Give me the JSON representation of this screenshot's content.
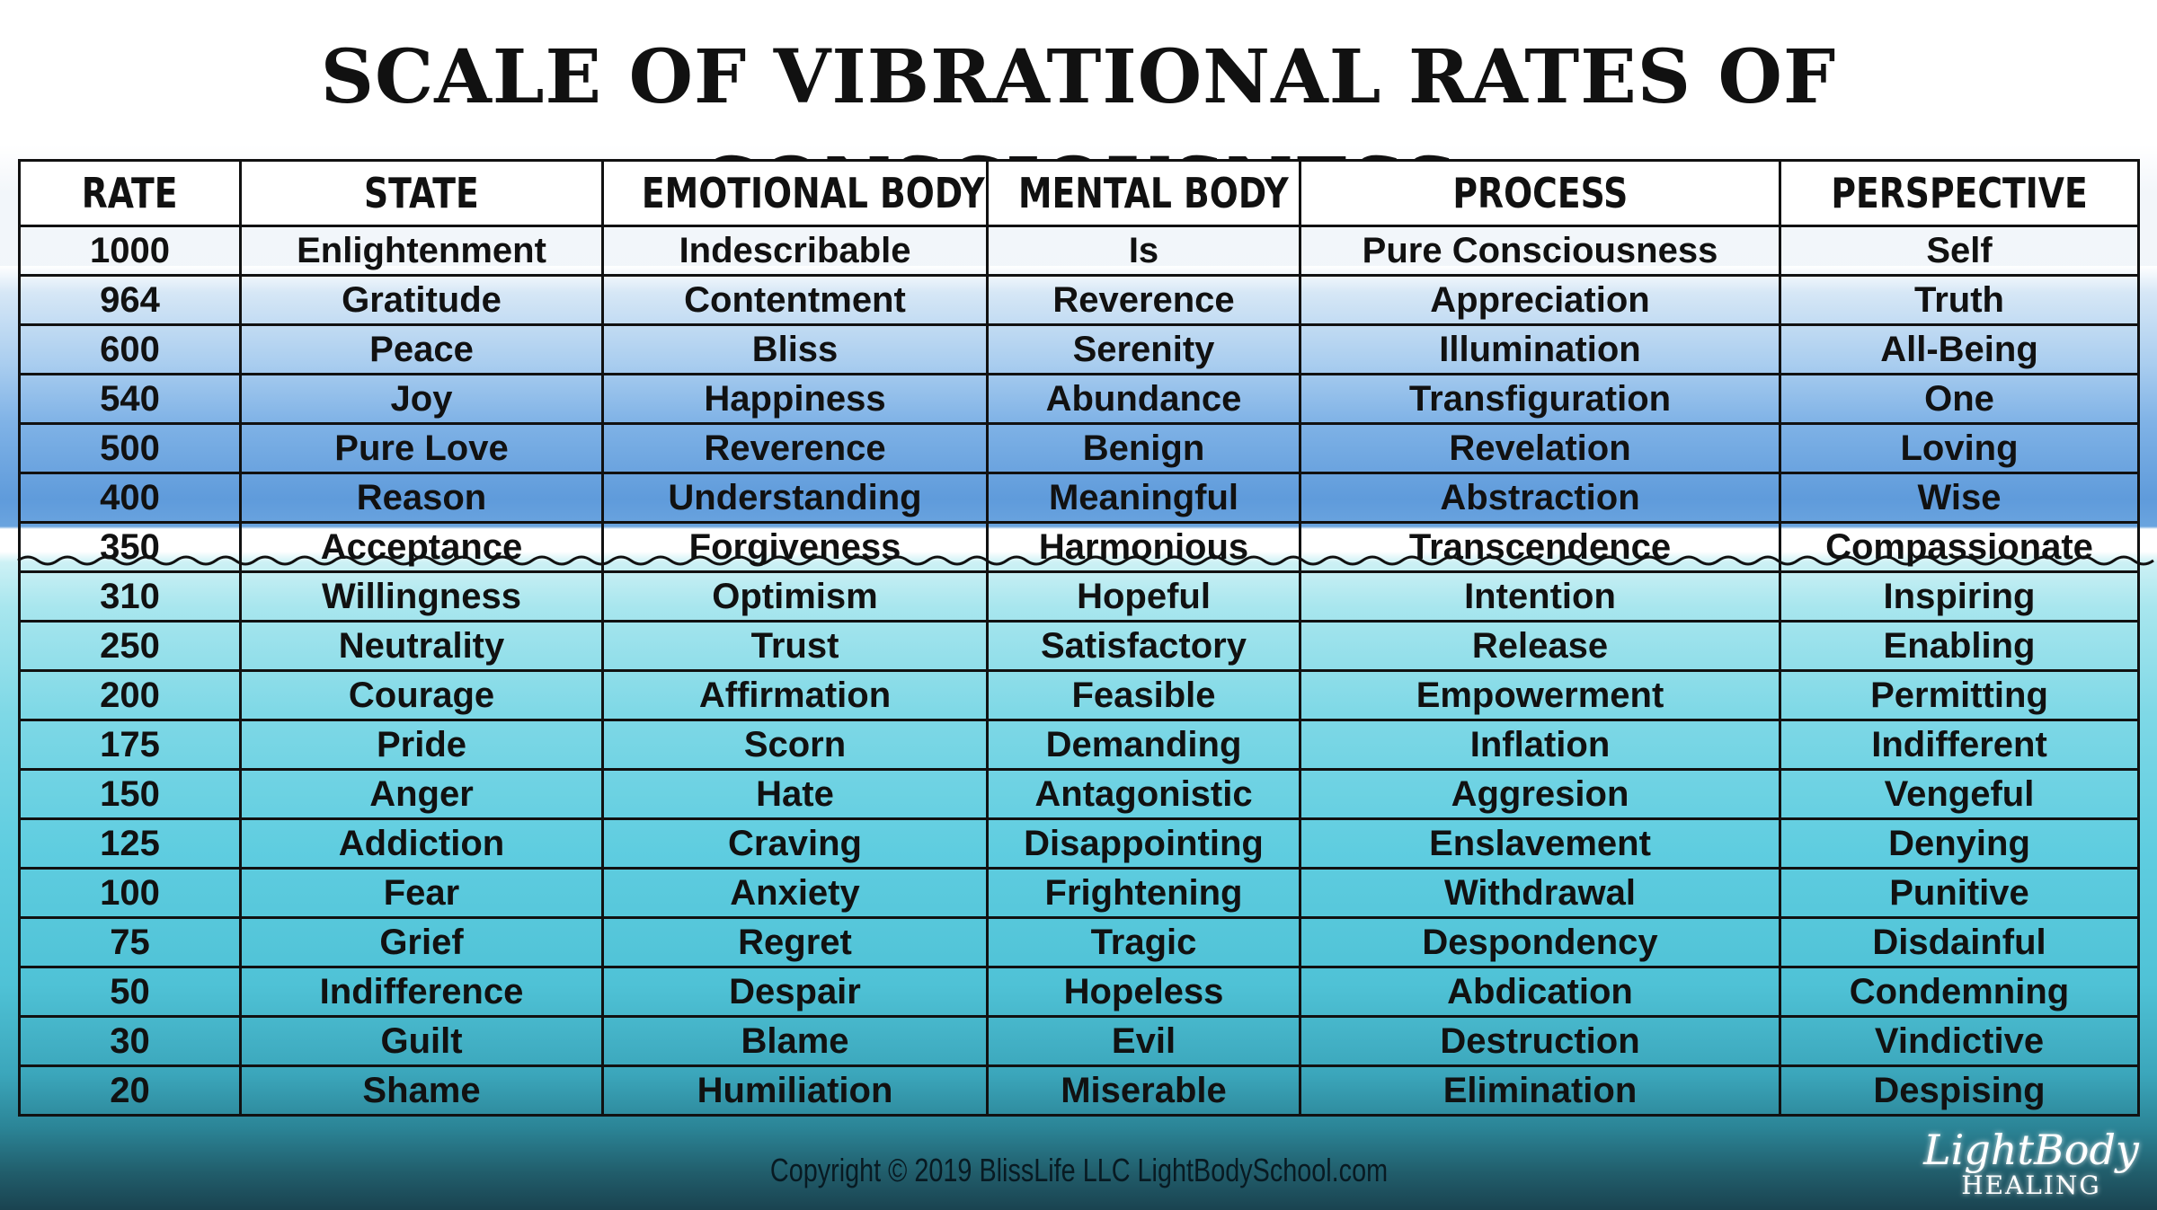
{
  "title": "SCALE OF VIBRATIONAL RATES OF CONSCIOUSNESS",
  "columns": [
    "RATE",
    "STATE",
    "EMOTIONAL BODY",
    "MENTAL BODY",
    "PROCESS",
    "PERSPECTIVE"
  ],
  "rows": [
    [
      "1000",
      "Enlightenment",
      "Indescribable",
      "Is",
      "Pure Consciousness",
      "Self"
    ],
    [
      "964",
      "Gratitude",
      "Contentment",
      "Reverence",
      "Appreciation",
      "Truth"
    ],
    [
      "600",
      "Peace",
      "Bliss",
      "Serenity",
      "Illumination",
      "All-Being"
    ],
    [
      "540",
      "Joy",
      "Happiness",
      "Abundance",
      "Transfiguration",
      "One"
    ],
    [
      "500",
      "Pure Love",
      "Reverence",
      "Benign",
      "Revelation",
      "Loving"
    ],
    [
      "400",
      "Reason",
      "Understanding",
      "Meaningful",
      "Abstraction",
      "Wise"
    ],
    [
      "350",
      "Acceptance",
      "Forgiveness",
      "Harmonious",
      "Transcendence",
      "Compassionate"
    ],
    [
      "310",
      "Willingness",
      "Optimism",
      "Hopeful",
      "Intention",
      "Inspiring"
    ],
    [
      "250",
      "Neutrality",
      "Trust",
      "Satisfactory",
      "Release",
      "Enabling"
    ],
    [
      "200",
      "Courage",
      "Affirmation",
      "Feasible",
      "Empowerment",
      "Permitting"
    ],
    [
      "175",
      "Pride",
      "Scorn",
      "Demanding",
      "Inflation",
      "Indifferent"
    ],
    [
      "150",
      "Anger",
      "Hate",
      "Antagonistic",
      "Aggresion",
      "Vengeful"
    ],
    [
      "125",
      "Addiction",
      "Craving",
      "Disappointing",
      "Enslavement",
      "Denying"
    ],
    [
      "100",
      "Fear",
      "Anxiety",
      "Frightening",
      "Withdrawal",
      "Punitive"
    ],
    [
      "75",
      "Grief",
      "Regret",
      "Tragic",
      "Despondency",
      "Disdainful"
    ],
    [
      "50",
      "Indifference",
      "Despair",
      "Hopeless",
      "Abdication",
      "Condemning"
    ],
    [
      "30",
      "Guilt",
      "Blame",
      "Evil",
      "Destruction",
      "Vindictive"
    ],
    [
      "20",
      "Shame",
      "Humiliation",
      "Miserable",
      "Elimination",
      "Despising"
    ]
  ],
  "footer": "Copyright © 2019 BlissLife LLC LightBodySchool.com",
  "logo": {
    "line1": "LightBody",
    "line2": "HEALING"
  }
}
